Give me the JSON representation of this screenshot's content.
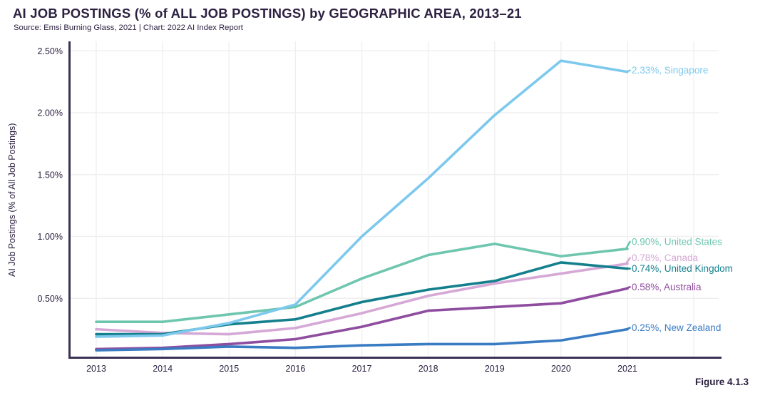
{
  "header": {
    "title": "AI JOB POSTINGS (% of ALL JOB POSTINGS) by GEOGRAPHIC AREA, 2013–21",
    "source": "Source: Emsi Burning Glass, 2021 | Chart: 2022 AI Index Report"
  },
  "figure_label": "Figure 4.1.3",
  "colors": {
    "text": "#2c2141",
    "axis": "#3b3154",
    "grid": "#efeff2"
  },
  "chart_data": {
    "type": "line",
    "title": "AI JOB POSTINGS (% of ALL JOB POSTINGS) by GEOGRAPHIC AREA, 2013–21",
    "xlabel": "",
    "ylabel": "AI Job Postings (% of All Job Postings)",
    "categories": [
      "2013",
      "2014",
      "2015",
      "2016",
      "2017",
      "2018",
      "2019",
      "2020",
      "2021"
    ],
    "ylim": [
      0,
      2.5
    ],
    "yticks": [
      {
        "value": 0.5,
        "label": "0.50%"
      },
      {
        "value": 1.0,
        "label": "1.00%"
      },
      {
        "value": 1.5,
        "label": "1.50%"
      },
      {
        "value": 2.0,
        "label": "2.00%"
      },
      {
        "value": 2.5,
        "label": "2.50%"
      }
    ],
    "grid": true,
    "legend_position": "right-end-labels",
    "series": [
      {
        "name": "United States",
        "color": "#6ec6af",
        "end_label": "0.90%, United States",
        "values": [
          0.31,
          0.31,
          0.37,
          0.43,
          0.66,
          0.85,
          0.94,
          0.84,
          0.9
        ]
      },
      {
        "name": "Canada",
        "color": "#d5a8d6",
        "end_label": "0.78%, Canada",
        "values": [
          0.25,
          0.22,
          0.21,
          0.26,
          0.38,
          0.52,
          0.62,
          0.7,
          0.78
        ]
      },
      {
        "name": "United Kingdom",
        "color": "#15808d",
        "end_label": "0.74%, United Kingdom",
        "values": [
          0.21,
          0.21,
          0.29,
          0.33,
          0.47,
          0.57,
          0.64,
          0.79,
          0.74
        ]
      },
      {
        "name": "Australia",
        "color": "#8f4d9f",
        "end_label": "0.58%, Australia",
        "values": [
          0.09,
          0.1,
          0.13,
          0.17,
          0.27,
          0.4,
          0.43,
          0.46,
          0.58
        ]
      },
      {
        "name": "New Zealand",
        "color": "#3a7cc3",
        "end_label": "0.25%, New Zealand",
        "values": [
          0.08,
          0.09,
          0.11,
          0.1,
          0.12,
          0.13,
          0.13,
          0.16,
          0.25
        ]
      },
      {
        "name": "Singapore",
        "color": "#7dc9ed",
        "end_label": "2.33%, Singapore",
        "values": [
          0.19,
          0.2,
          0.3,
          0.45,
          1.0,
          1.47,
          1.98,
          2.42,
          2.33
        ]
      }
    ]
  }
}
